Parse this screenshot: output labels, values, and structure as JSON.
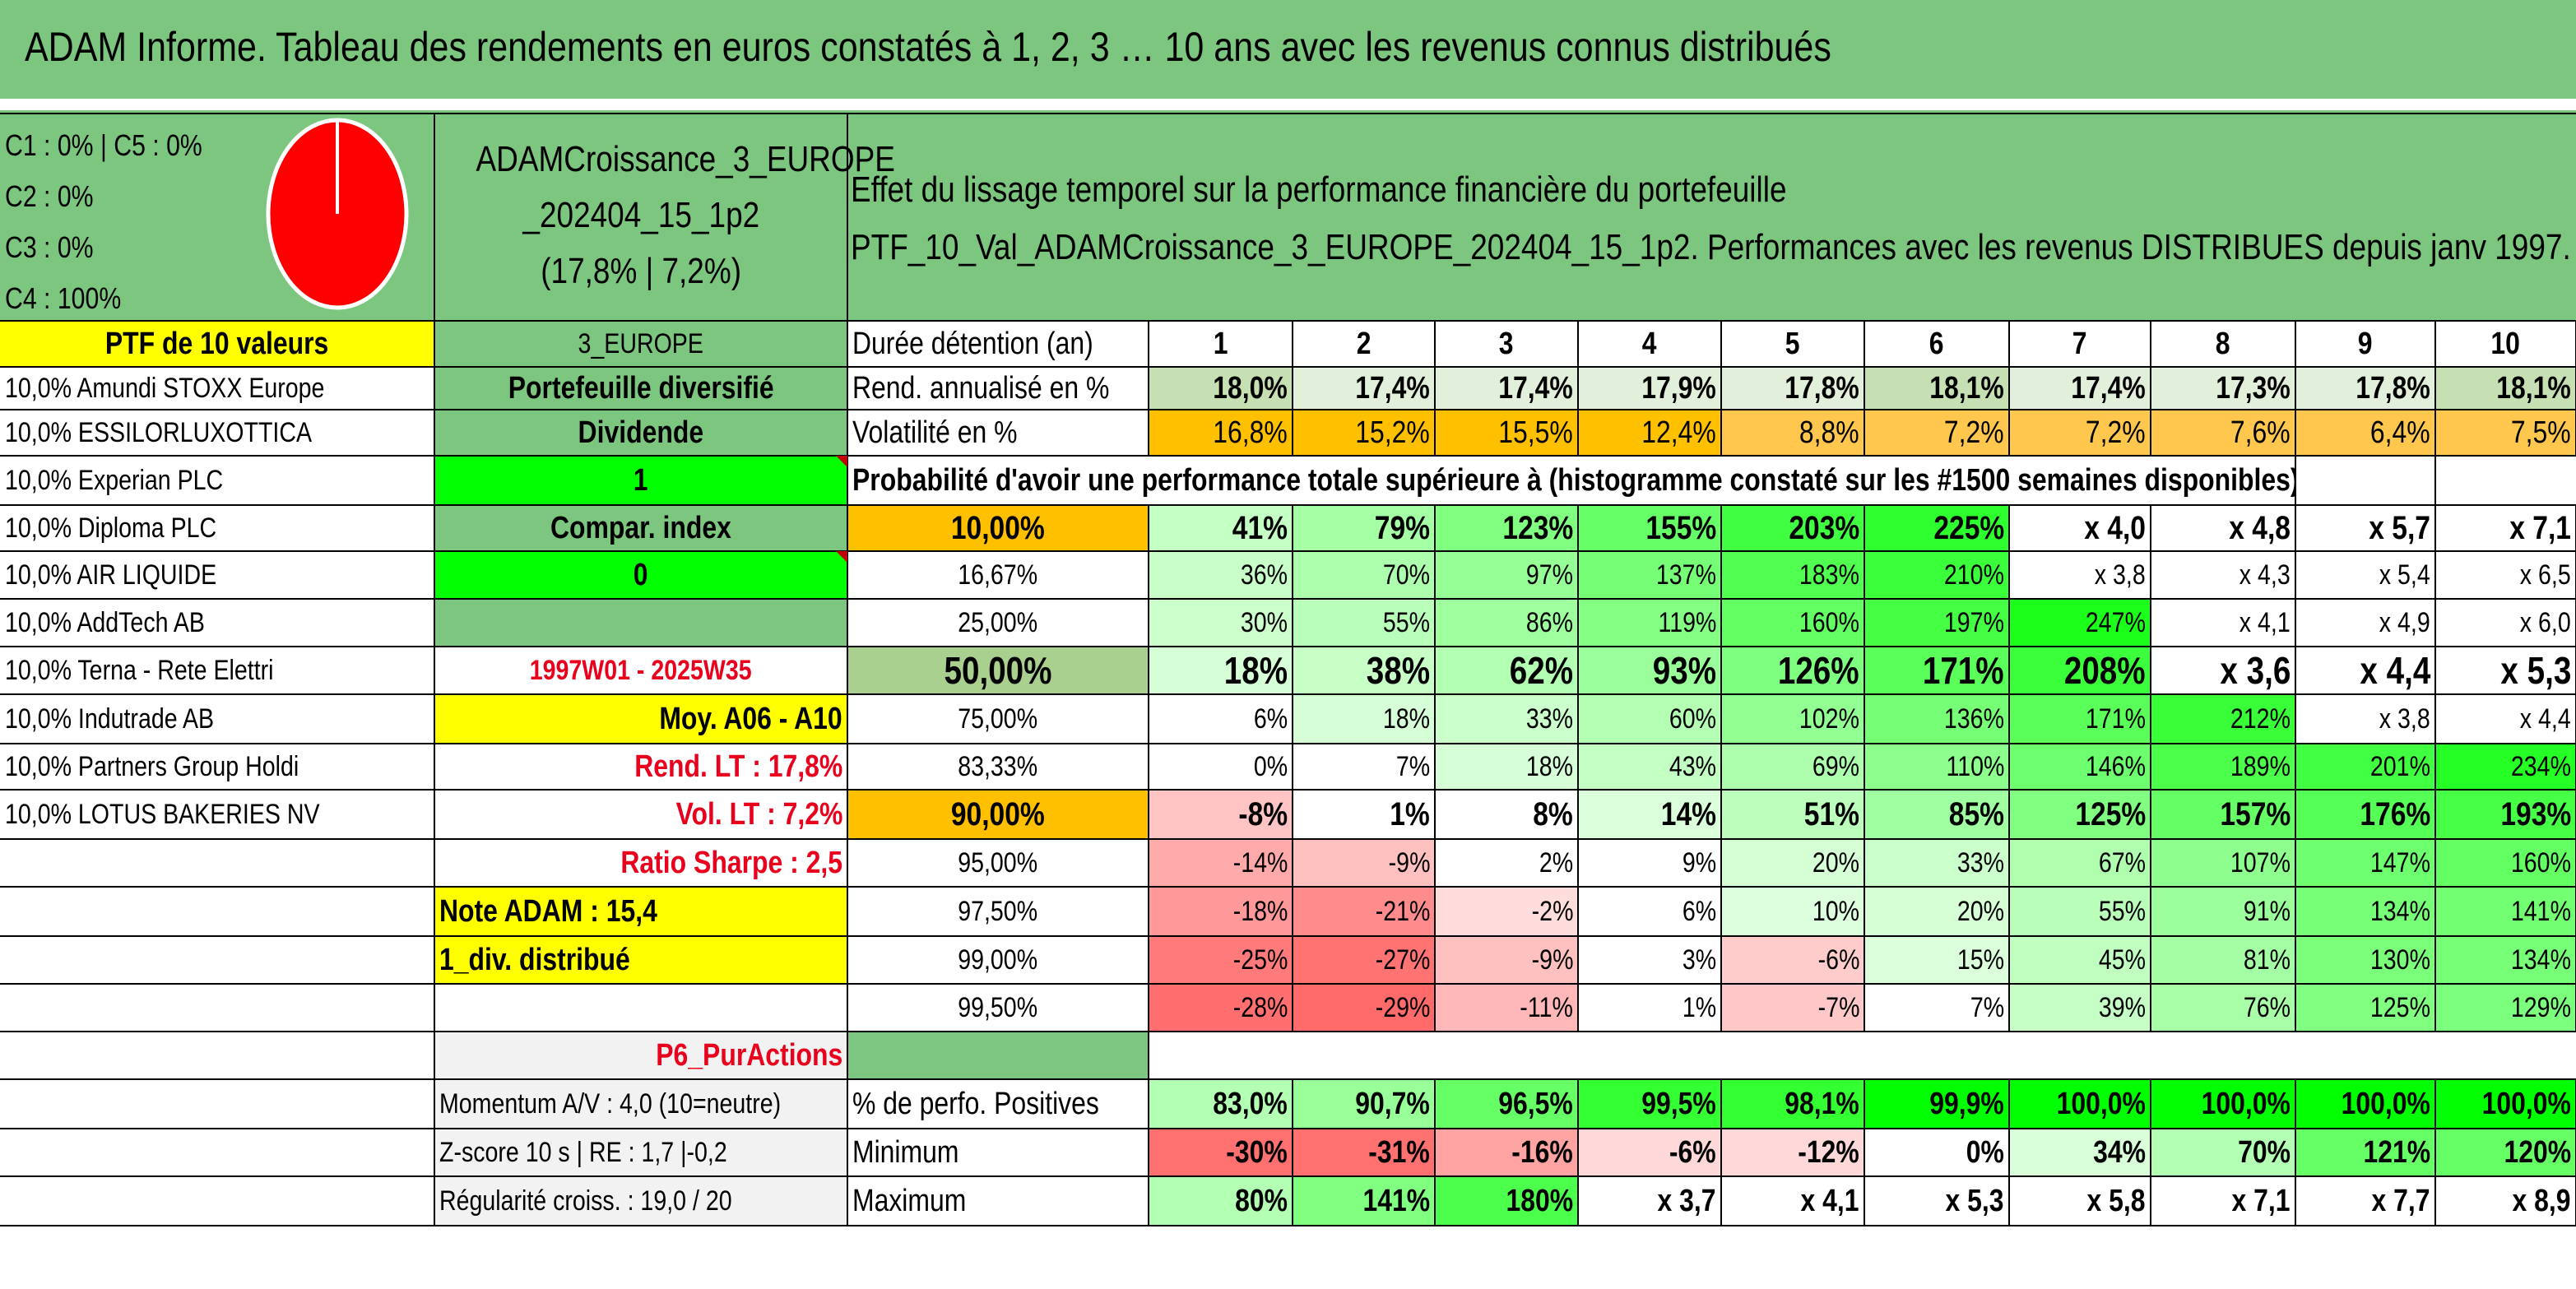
{
  "title": "ADAM Informe. Tableau des rendements en euros constatés à 1, 2, 3 … 10 ans avec les revenus connus distribués",
  "alloc": [
    "C1 : 0% | C5 : 0%",
    "C2 : 0%",
    "C3 : 0%",
    "C4 : 100%"
  ],
  "pie": {
    "share_c4": 1.0,
    "color": "#ff0000"
  },
  "portfolio": {
    "name_line1": "ADAMCroissance_3_EUROPE",
    "name_line2": "_202404_15_1p2",
    "name_line3": "(17,8% | 7,2%)"
  },
  "effect": {
    "line1": "Effet du lissage temporel sur la performance financière du portefeuille",
    "line2": "PTF_10_Val_ADAMCroissance_3_EUROPE_202404_15_1p2. Performances avec les revenus DISTRIBUES depuis janv 1997."
  },
  "ptf_header": "PTF de 10 valeurs",
  "holdings": [
    "10,0% Amundi STOXX Europe",
    "10,0% ESSILORLUXOTTICA",
    "10,0% Experian PLC",
    "10,0% Diploma PLC",
    "10,0% AIR LIQUIDE",
    "10,0% AddTech AB",
    "10,0% Terna - Rete Elettri",
    "10,0% Indutrade AB",
    "10,0% Partners Group Holdi",
    "10,0% LOTUS BAKERIES NV"
  ],
  "info": {
    "zone": "3_EUROPE",
    "type": "Portefeuille diversifié",
    "dividende_label": "Dividende",
    "dividende_value": "1",
    "compar_label": "Compar. index",
    "compar_value": "0",
    "period": "1997W01 - 2025W35",
    "moy": "Moy. A06 - A10",
    "rend_lt": "Rend. LT : 17,8%",
    "vol_lt": "Vol. LT : 7,2%",
    "sharpe": "Ratio Sharpe : 2,5",
    "note": "Note ADAM : 15,4",
    "div": "1_div. distribué",
    "p6": "P6_PurActions",
    "momentum": "Momentum A/V : 4,0 (10=neutre)",
    "zscore": "Z-score 10 s | RE : 1,7 |-0,2",
    "regularite": "Régularité croiss. : 19,0 / 20"
  },
  "table": {
    "duration_label": "Durée détention (an)",
    "years": [
      "1",
      "2",
      "3",
      "4",
      "5",
      "6",
      "7",
      "8",
      "9",
      "10"
    ],
    "rend_label": "Rend. annualisé en %",
    "rend": [
      "18,0%",
      "17,4%",
      "17,4%",
      "17,9%",
      "17,8%",
      "18,1%",
      "17,4%",
      "17,3%",
      "17,8%",
      "18,1%"
    ],
    "vol_label": "Volatilité en %",
    "vol": [
      "16,8%",
      "15,2%",
      "15,5%",
      "12,4%",
      "8,8%",
      "7,2%",
      "7,2%",
      "7,6%",
      "6,4%",
      "7,5%"
    ],
    "proba_title": "Probabilité d'avoir une performance totale supérieure à (histogramme constaté sur les #1500 semaines disponibles)",
    "proba_rows": [
      {
        "p": "10,00%",
        "v": [
          "41%",
          "79%",
          "123%",
          "155%",
          "203%",
          "225%",
          "x 4,0",
          "x 4,8",
          "x 5,7",
          "x 7,1"
        ]
      },
      {
        "p": "16,67%",
        "v": [
          "36%",
          "70%",
          "97%",
          "137%",
          "183%",
          "210%",
          "x 3,8",
          "x 4,3",
          "x 5,4",
          "x 6,5"
        ]
      },
      {
        "p": "25,00%",
        "v": [
          "30%",
          "55%",
          "86%",
          "119%",
          "160%",
          "197%",
          "247%",
          "x 4,1",
          "x 4,9",
          "x 6,0"
        ]
      },
      {
        "p": "50,00%",
        "v": [
          "18%",
          "38%",
          "62%",
          "93%",
          "126%",
          "171%",
          "208%",
          "x 3,6",
          "x 4,4",
          "x 5,3"
        ]
      },
      {
        "p": "75,00%",
        "v": [
          "6%",
          "18%",
          "33%",
          "60%",
          "102%",
          "136%",
          "171%",
          "212%",
          "x 3,8",
          "x 4,4"
        ]
      },
      {
        "p": "83,33%",
        "v": [
          "0%",
          "7%",
          "18%",
          "43%",
          "69%",
          "110%",
          "146%",
          "189%",
          "201%",
          "234%"
        ]
      },
      {
        "p": "90,00%",
        "v": [
          "-8%",
          "1%",
          "8%",
          "14%",
          "51%",
          "85%",
          "125%",
          "157%",
          "176%",
          "193%"
        ]
      },
      {
        "p": "95,00%",
        "v": [
          "-14%",
          "-9%",
          "2%",
          "9%",
          "20%",
          "33%",
          "67%",
          "107%",
          "147%",
          "160%"
        ]
      },
      {
        "p": "97,50%",
        "v": [
          "-18%",
          "-21%",
          "-2%",
          "6%",
          "10%",
          "20%",
          "55%",
          "91%",
          "134%",
          "141%"
        ]
      },
      {
        "p": "99,00%",
        "v": [
          "-25%",
          "-27%",
          "-9%",
          "3%",
          "-6%",
          "15%",
          "45%",
          "81%",
          "130%",
          "134%"
        ]
      },
      {
        "p": "99,50%",
        "v": [
          "-28%",
          "-29%",
          "-11%",
          "1%",
          "-7%",
          "7%",
          "39%",
          "76%",
          "125%",
          "129%"
        ]
      }
    ],
    "pos_label": "% de perfo. Positives",
    "pos": [
      "83,0%",
      "90,7%",
      "96,5%",
      "99,5%",
      "98,1%",
      "99,9%",
      "100,0%",
      "100,0%",
      "100,0%",
      "100,0%"
    ],
    "min_label": "Minimum",
    "min": [
      "-30%",
      "-31%",
      "-16%",
      "-6%",
      "-12%",
      "0%",
      "34%",
      "70%",
      "121%",
      "120%"
    ],
    "max_label": "Maximum",
    "max": [
      "80%",
      "141%",
      "180%",
      "x 3,7",
      "x 4,1",
      "x 5,3",
      "x 5,8",
      "x 7,1",
      "x 7,7",
      "x 8,9"
    ]
  },
  "colors": {
    "green_header": "#7dc67f",
    "yellow": "#ffff00",
    "orange": "#ffc000",
    "bright_green": "#00ff00",
    "red_text": "#e8001c",
    "light_gray": "#f2f2f2",
    "light_green_rend": "#c6e0b4"
  }
}
